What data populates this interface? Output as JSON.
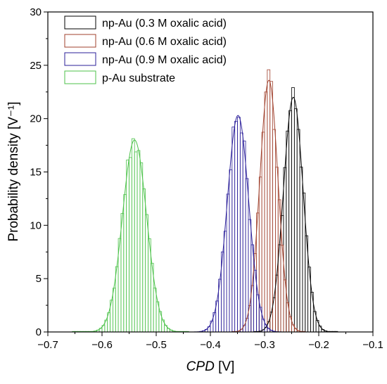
{
  "chart_data": {
    "type": "bar",
    "subtype": "histogram-with-gaussian-fit",
    "xlabel_italic": "CPD",
    "xlabel_unit": " [V]",
    "ylabel": "Probability density [V⁻¹]",
    "xlim": [
      -0.7,
      -0.1
    ],
    "ylim": [
      0,
      30
    ],
    "xticks": [
      -0.7,
      -0.6,
      -0.5,
      -0.4,
      -0.3,
      -0.2,
      -0.1
    ],
    "yticks": [
      0,
      5,
      10,
      15,
      20,
      25,
      30
    ],
    "xtick_labels": [
      "−0.7",
      "−0.6",
      "−0.5",
      "−0.4",
      "−0.3",
      "−0.2",
      "−0.1"
    ],
    "ytick_labels": [
      "0",
      "5",
      "10",
      "15",
      "20",
      "25",
      "30"
    ],
    "grid": false,
    "legend_position": "top-left",
    "bin_width": 0.005,
    "series": [
      {
        "name": "np-Au (0.3 M oxalic acid)",
        "color": "#000000",
        "mean": -0.247,
        "sigma": 0.0181,
        "peak": 22.0,
        "xmin": -0.32,
        "xmax": -0.165
      },
      {
        "name": "np-Au (0.6 M oxalic acid)",
        "color": "#a0412d",
        "mean": -0.292,
        "sigma": 0.0168,
        "peak": 23.6,
        "xmin": -0.36,
        "xmax": -0.225
      },
      {
        "name": "np-Au (0.9 M oxalic acid)",
        "color": "#2b1f9a",
        "mean": -0.349,
        "sigma": 0.0197,
        "peak": 20.3,
        "xmin": -0.42,
        "xmax": -0.28
      },
      {
        "name": "p-Au substrate",
        "color": "#4cc24a",
        "mean": -0.54,
        "sigma": 0.0222,
        "peak": 18.0,
        "xmin": -0.655,
        "xmax": -0.44
      }
    ]
  }
}
